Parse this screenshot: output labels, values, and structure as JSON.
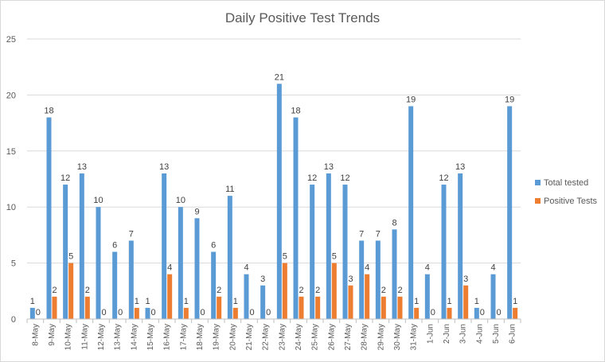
{
  "chart_data": {
    "type": "bar",
    "title": "Daily Positive Test Trends",
    "xlabel": "",
    "ylabel": "",
    "ylim": [
      0,
      25
    ],
    "yticks": [
      0,
      5,
      10,
      15,
      20,
      25
    ],
    "grid": true,
    "legend_position": "right",
    "categories": [
      "8-May",
      "9-May",
      "10-May",
      "11-May",
      "12-May",
      "13-May",
      "14-May",
      "15-May",
      "16-May",
      "17-May",
      "18-May",
      "19-May",
      "20-May",
      "21-May",
      "22-May",
      "23-May",
      "24-May",
      "25-May",
      "26-May",
      "27-May",
      "28-May",
      "29-May",
      "30-May",
      "31-May",
      "1-Jun",
      "2-Jun",
      "3-Jun",
      "4-Jun",
      "5-Jun",
      "6-Jun"
    ],
    "series": [
      {
        "name": "Total tested",
        "color": "#5b9bd5",
        "values": [
          1,
          18,
          12,
          13,
          10,
          6,
          7,
          1,
          13,
          10,
          9,
          6,
          11,
          4,
          3,
          21,
          18,
          12,
          13,
          12,
          7,
          7,
          8,
          19,
          4,
          12,
          13,
          1,
          4,
          19
        ]
      },
      {
        "name": "Positive Tests",
        "color": "#ed7d31",
        "values": [
          0,
          2,
          5,
          2,
          0,
          0,
          1,
          0,
          4,
          1,
          0,
          2,
          1,
          0,
          0,
          5,
          2,
          2,
          5,
          3,
          4,
          2,
          2,
          1,
          0,
          1,
          3,
          0,
          0,
          1
        ]
      }
    ]
  }
}
